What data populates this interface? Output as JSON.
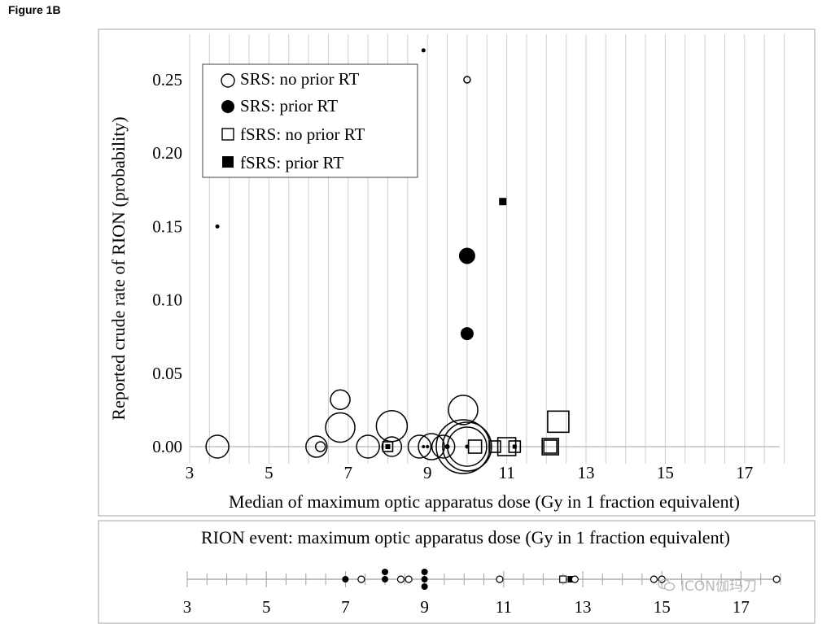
{
  "figure_label": "Figure 1B",
  "watermark": "ICON伽玛刀",
  "chart_data": [
    {
      "type": "scatter",
      "xlabel": "Median of maximum optic apparatus dose (Gy in 1 fraction equivalent)",
      "ylabel": "Reported crude rate of RION (probability)",
      "xlim": [
        2,
        19
      ],
      "ylim": [
        -0.008,
        0.275
      ],
      "xticks": [
        3,
        5,
        7,
        9,
        11,
        13,
        15,
        17
      ],
      "yticks": [
        0.0,
        0.05,
        0.1,
        0.15,
        0.2,
        0.25
      ],
      "ytick_labels": [
        "0.00",
        "0.05",
        "0.10",
        "0.15",
        "0.20",
        "0.25"
      ],
      "grid": "vertical",
      "legend_position": "top-left",
      "legend": [
        {
          "name": "SRS: no prior RT",
          "marker": "circle-open"
        },
        {
          "name": "SRS: prior RT",
          "marker": "circle-filled"
        },
        {
          "name": "fSRS: no prior RT",
          "marker": "square-open"
        },
        {
          "name": "fSRS: prior RT",
          "marker": "square-filled"
        }
      ],
      "series": [
        {
          "name": "SRS: no prior RT",
          "marker": "circle-open",
          "points": [
            {
              "x": 3.7,
              "y": 0.0,
              "size": 14
            },
            {
              "x": 6.2,
              "y": 0.0,
              "size": 13
            },
            {
              "x": 6.3,
              "y": 0.0,
              "size": 6
            },
            {
              "x": 6.8,
              "y": 0.032,
              "size": 12
            },
            {
              "x": 6.8,
              "y": 0.013,
              "size": 18
            },
            {
              "x": 7.5,
              "y": 0.0,
              "size": 14
            },
            {
              "x": 8.1,
              "y": 0.014,
              "size": 19
            },
            {
              "x": 8.1,
              "y": 0.0,
              "size": 12
            },
            {
              "x": 8.8,
              "y": 0.0,
              "size": 14
            },
            {
              "x": 9.1,
              "y": 0.0,
              "size": 16
            },
            {
              "x": 9.4,
              "y": 0.0,
              "size": 14
            },
            {
              "x": 9.9,
              "y": 0.025,
              "size": 18
            },
            {
              "x": 9.9,
              "y": 0.0,
              "size": 33
            },
            {
              "x": 10.0,
              "y": 0.0,
              "size": 30
            },
            {
              "x": 10.0,
              "y": 0.0,
              "size": 24
            },
            {
              "x": 10.0,
              "y": 0.25,
              "size": 4
            }
          ]
        },
        {
          "name": "SRS: prior RT",
          "marker": "circle-filled",
          "points": [
            {
              "x": 3.7,
              "y": 0.15,
              "size": 2.5
            },
            {
              "x": 8.9,
              "y": 0.27,
              "size": 2.5
            },
            {
              "x": 10.0,
              "y": 0.13,
              "size": 10
            },
            {
              "x": 10.0,
              "y": 0.077,
              "size": 8
            },
            {
              "x": 8.9,
              "y": 0.0,
              "size": 2
            },
            {
              "x": 9.0,
              "y": 0.0,
              "size": 2
            },
            {
              "x": 9.5,
              "y": 0.0,
              "size": 3
            },
            {
              "x": 10.0,
              "y": 0.0,
              "size": 2.5
            }
          ]
        },
        {
          "name": "fSRS: no prior RT",
          "marker": "square-open",
          "points": [
            {
              "x": 8.0,
              "y": 0.0,
              "size": 6
            },
            {
              "x": 10.2,
              "y": 0.0,
              "size": 8
            },
            {
              "x": 10.7,
              "y": 0.0,
              "size": 7
            },
            {
              "x": 11.0,
              "y": 0.0,
              "size": 11
            },
            {
              "x": 11.2,
              "y": 0.0,
              "size": 7
            },
            {
              "x": 12.1,
              "y": 0.0,
              "size": 10
            },
            {
              "x": 12.1,
              "y": 0.0,
              "size": 8
            },
            {
              "x": 12.3,
              "y": 0.017,
              "size": 13
            }
          ]
        },
        {
          "name": "fSRS: prior RT",
          "marker": "square-filled",
          "points": [
            {
              "x": 10.9,
              "y": 0.167,
              "size": 4.5
            },
            {
              "x": 8.0,
              "y": 0.0,
              "size": 3
            },
            {
              "x": 11.2,
              "y": 0.0,
              "size": 2.5
            }
          ]
        }
      ]
    },
    {
      "type": "scatter",
      "title": "RION event: maximum optic apparatus dose (Gy in 1 fraction equivalent)",
      "xlim": [
        2,
        19
      ],
      "xticks": [
        3,
        5,
        7,
        9,
        11,
        13,
        15,
        17
      ],
      "points": [
        {
          "x": 7.0,
          "level": 0,
          "marker": "circle-filled"
        },
        {
          "x": 7.4,
          "level": 0,
          "marker": "circle-open"
        },
        {
          "x": 8.0,
          "level": 0,
          "marker": "circle-filled"
        },
        {
          "x": 8.0,
          "level": 1,
          "marker": "circle-filled"
        },
        {
          "x": 8.4,
          "level": 0,
          "marker": "circle-open"
        },
        {
          "x": 8.6,
          "level": 0,
          "marker": "circle-open"
        },
        {
          "x": 9.0,
          "level": 0,
          "marker": "circle-filled"
        },
        {
          "x": 9.0,
          "level": 1,
          "marker": "circle-filled"
        },
        {
          "x": 9.0,
          "level": -1,
          "marker": "circle-filled"
        },
        {
          "x": 10.9,
          "level": 0,
          "marker": "circle-open"
        },
        {
          "x": 12.5,
          "level": 0,
          "marker": "square-open"
        },
        {
          "x": 12.7,
          "level": 0,
          "marker": "square-filled"
        },
        {
          "x": 12.8,
          "level": 0,
          "marker": "circle-open"
        },
        {
          "x": 14.8,
          "level": 0,
          "marker": "circle-open"
        },
        {
          "x": 15.0,
          "level": 0,
          "marker": "circle-open"
        },
        {
          "x": 17.9,
          "level": 0,
          "marker": "circle-open"
        }
      ]
    }
  ]
}
